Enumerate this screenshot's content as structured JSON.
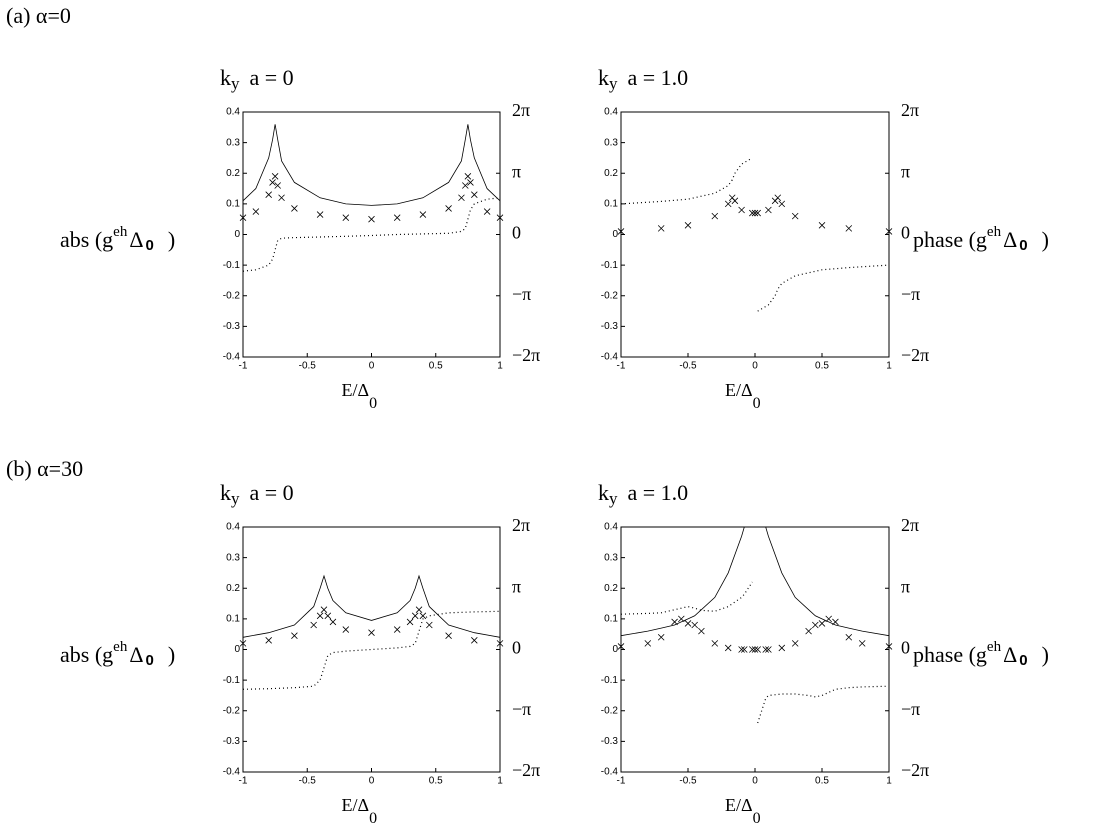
{
  "rows": [
    {
      "label": "(a)  α=0",
      "ylabel": {
        "a": "abs (g",
        "sup": "eh",
        "b": "Δ",
        "sub": "0",
        "c": ")"
      },
      "y2label": {
        "a": "phase (g",
        "sup": "eh",
        "b": "Δ",
        "sub": "0",
        "c": ")"
      }
    },
    {
      "label": "(b)  α=30",
      "ylabel": {
        "a": "abs (g",
        "sup": "eh",
        "b": "Δ",
        "sub": "0",
        "c": ")"
      },
      "y2label": {
        "a": "phase (g",
        "sup": "eh",
        "b": "Δ",
        "sub": "0",
        "c": ")"
      }
    }
  ],
  "chart_data": [
    {
      "type": "line",
      "title": {
        "main": "k",
        "sub": "y",
        "rest": "a = 0"
      },
      "xlabel": {
        "main": "E/Δ",
        "sub": "0"
      },
      "xlim": [
        -1,
        1
      ],
      "xticks": [
        -1,
        -0.5,
        0,
        0.5,
        1
      ],
      "ylim": [
        -0.4,
        0.4
      ],
      "yticks": [
        -0.4,
        -0.3,
        -0.2,
        -0.1,
        0,
        0.1,
        0.2,
        0.3,
        0.4
      ],
      "y2lim": [
        -6.283,
        6.283
      ],
      "y2ticks": [
        {
          "value": -6.283,
          "label": "−2π"
        },
        {
          "value": -3.142,
          "label": "−π"
        },
        0,
        {
          "value": 3.142,
          "label": "π"
        },
        {
          "value": 6.283,
          "label": "2π"
        }
      ],
      "x": [
        -1,
        -0.9,
        -0.8,
        -0.77,
        -0.75,
        -0.73,
        -0.7,
        -0.6,
        -0.4,
        -0.2,
        0,
        0.2,
        0.4,
        0.6,
        0.7,
        0.73,
        0.75,
        0.77,
        0.8,
        0.9,
        1
      ],
      "series": [
        {
          "color": "#000000",
          "marker": "line",
          "values": [
            0.11,
            0.15,
            0.25,
            0.31,
            0.36,
            0.31,
            0.24,
            0.17,
            0.12,
            0.1,
            0.095,
            0.1,
            0.12,
            0.17,
            0.24,
            0.31,
            0.36,
            0.31,
            0.25,
            0.15,
            0.11
          ]
        },
        {
          "color": "#000000",
          "marker": "x",
          "values": [
            0.055,
            0.075,
            0.13,
            0.17,
            0.19,
            0.16,
            0.12,
            0.085,
            0.065,
            0.055,
            0.05,
            0.055,
            0.065,
            0.085,
            0.12,
            0.16,
            0.19,
            0.17,
            0.13,
            0.075,
            0.055
          ]
        },
        {
          "color": "#000000",
          "marker": "dot",
          "axis": "y2",
          "values": [
            -1.88,
            -1.81,
            -1.57,
            -1.26,
            -0.79,
            -0.31,
            -0.19,
            -0.16,
            -0.13,
            -0.09,
            -0.05,
            0,
            0.03,
            0.06,
            0.16,
            0.31,
            0.79,
            1.26,
            1.57,
            1.81,
            1.88
          ]
        }
      ]
    },
    {
      "type": "line",
      "title": {
        "main": "k",
        "sub": "y",
        "rest": "a = 1.0"
      },
      "xlabel": {
        "main": "E/Δ",
        "sub": "0"
      },
      "xlim": [
        -1,
        1
      ],
      "xticks": [
        -1,
        -0.5,
        0,
        0.5,
        1
      ],
      "ylim": [
        -0.4,
        0.4
      ],
      "yticks": [
        -0.4,
        -0.3,
        -0.2,
        -0.1,
        0,
        0.1,
        0.2,
        0.3,
        0.4
      ],
      "y2lim": [
        -6.283,
        6.283
      ],
      "y2ticks": [
        {
          "value": -6.283,
          "label": "−2π"
        },
        {
          "value": -3.142,
          "label": "−π"
        },
        0,
        {
          "value": 3.142,
          "label": "π"
        },
        {
          "value": 6.283,
          "label": "2π"
        }
      ],
      "x": [
        -1,
        -0.7,
        -0.5,
        -0.3,
        -0.2,
        -0.17,
        -0.15,
        -0.1,
        -0.02,
        0,
        0.02,
        0.1,
        0.15,
        0.17,
        0.2,
        0.3,
        0.5,
        0.7,
        1
      ],
      "series": [
        {
          "color": "#000000",
          "marker": "x",
          "values": [
            0.01,
            0.02,
            0.03,
            0.06,
            0.1,
            0.12,
            0.11,
            0.08,
            0.07,
            0.07,
            0.07,
            0.08,
            0.11,
            0.12,
            0.1,
            0.06,
            0.03,
            0.02,
            0.01
          ]
        },
        {
          "color": "#000000",
          "marker": "dot",
          "axis": "y2",
          "values": [
            1.57,
            1.7,
            1.81,
            2.12,
            2.51,
            2.8,
            3.14,
            3.61,
            3.93,
            null,
            -3.93,
            -3.61,
            -3.14,
            -2.8,
            -2.51,
            -2.12,
            -1.81,
            -1.7,
            -1.57
          ]
        }
      ]
    },
    {
      "type": "line",
      "title": {
        "main": "k",
        "sub": "y",
        "rest": "a = 0"
      },
      "xlabel": {
        "main": "E/Δ",
        "sub": "0"
      },
      "xlim": [
        -1,
        1
      ],
      "xticks": [
        -1,
        -0.5,
        0,
        0.5,
        1
      ],
      "ylim": [
        -0.4,
        0.4
      ],
      "yticks": [
        -0.4,
        -0.3,
        -0.2,
        -0.1,
        0,
        0.1,
        0.2,
        0.3,
        0.4
      ],
      "y2lim": [
        -6.283,
        6.283
      ],
      "y2ticks": [
        {
          "value": -6.283,
          "label": "−2π"
        },
        {
          "value": -3.142,
          "label": "−π"
        },
        0,
        {
          "value": 3.142,
          "label": "π"
        },
        {
          "value": 6.283,
          "label": "2π"
        }
      ],
      "x": [
        -1,
        -0.8,
        -0.6,
        -0.45,
        -0.4,
        -0.37,
        -0.34,
        -0.3,
        -0.2,
        0,
        0.2,
        0.3,
        0.34,
        0.37,
        0.4,
        0.45,
        0.6,
        0.8,
        1
      ],
      "series": [
        {
          "color": "#000000",
          "marker": "line",
          "values": [
            0.04,
            0.055,
            0.08,
            0.14,
            0.2,
            0.24,
            0.2,
            0.16,
            0.12,
            0.095,
            0.12,
            0.16,
            0.2,
            0.24,
            0.2,
            0.14,
            0.08,
            0.055,
            0.04
          ]
        },
        {
          "color": "#000000",
          "marker": "x",
          "values": [
            0.02,
            0.03,
            0.045,
            0.08,
            0.11,
            0.13,
            0.11,
            0.09,
            0.065,
            0.055,
            0.065,
            0.09,
            0.11,
            0.13,
            0.11,
            0.08,
            0.045,
            0.03,
            0.02
          ]
        },
        {
          "color": "#000000",
          "marker": "dot",
          "axis": "y2",
          "values": [
            -2.04,
            -2.01,
            -1.96,
            -1.88,
            -1.57,
            -0.94,
            -0.31,
            -0.16,
            -0.08,
            0,
            0.08,
            0.16,
            0.31,
            0.94,
            1.57,
            1.73,
            1.88,
            1.93,
            1.96
          ]
        }
      ]
    },
    {
      "type": "line",
      "title": {
        "main": "k",
        "sub": "y",
        "rest": "a = 1.0"
      },
      "xlabel": {
        "main": "E/Δ",
        "sub": "0"
      },
      "xlim": [
        -1,
        1
      ],
      "xticks": [
        -1,
        -0.5,
        0,
        0.5,
        1
      ],
      "ylim": [
        -0.4,
        0.4
      ],
      "yticks": [
        -0.4,
        -0.3,
        -0.2,
        -0.1,
        0,
        0.1,
        0.2,
        0.3,
        0.4
      ],
      "y2lim": [
        -6.283,
        6.283
      ],
      "y2ticks": [
        {
          "value": -6.283,
          "label": "−2π"
        },
        {
          "value": -3.142,
          "label": "−π"
        },
        0,
        {
          "value": 3.142,
          "label": "π"
        },
        {
          "value": 6.283,
          "label": "2π"
        }
      ],
      "x": [
        -1,
        -0.8,
        -0.7,
        -0.6,
        -0.55,
        -0.5,
        -0.45,
        -0.4,
        -0.3,
        -0.2,
        -0.1,
        -0.08,
        -0.02,
        0,
        0.02,
        0.08,
        0.1,
        0.2,
        0.3,
        0.4,
        0.45,
        0.5,
        0.55,
        0.6,
        0.7,
        0.8,
        1
      ],
      "series": [
        {
          "color": "#000000",
          "marker": "line",
          "values": [
            0.045,
            0.06,
            0.07,
            0.08,
            0.09,
            0.1,
            0.11,
            0.13,
            0.17,
            0.25,
            0.37,
            0.4,
            null,
            null,
            null,
            0.4,
            0.37,
            0.25,
            0.17,
            0.13,
            0.11,
            0.1,
            0.09,
            0.08,
            0.07,
            0.06,
            0.045
          ]
        },
        {
          "color": "#000000",
          "marker": "x",
          "values": [
            0.01,
            0.02,
            0.04,
            0.09,
            0.1,
            0.085,
            0.08,
            0.06,
            0.02,
            0.005,
            0,
            0,
            0,
            0,
            0,
            0,
            0,
            0.005,
            0.02,
            0.06,
            0.08,
            0.085,
            0.1,
            0.09,
            0.04,
            0.02,
            0.01
          ]
        },
        {
          "color": "#000000",
          "marker": "dot",
          "axis": "y2",
          "values": [
            1.81,
            1.85,
            1.88,
            2.04,
            2.12,
            2.2,
            2.12,
            2.01,
            1.96,
            2.2,
            2.67,
            2.83,
            3.46,
            null,
            -3.77,
            -2.51,
            -2.36,
            -2.28,
            -2.28,
            -2.36,
            -2.43,
            -2.36,
            -2.2,
            -2.04,
            -1.96,
            -1.92,
            -1.88
          ]
        }
      ]
    }
  ]
}
